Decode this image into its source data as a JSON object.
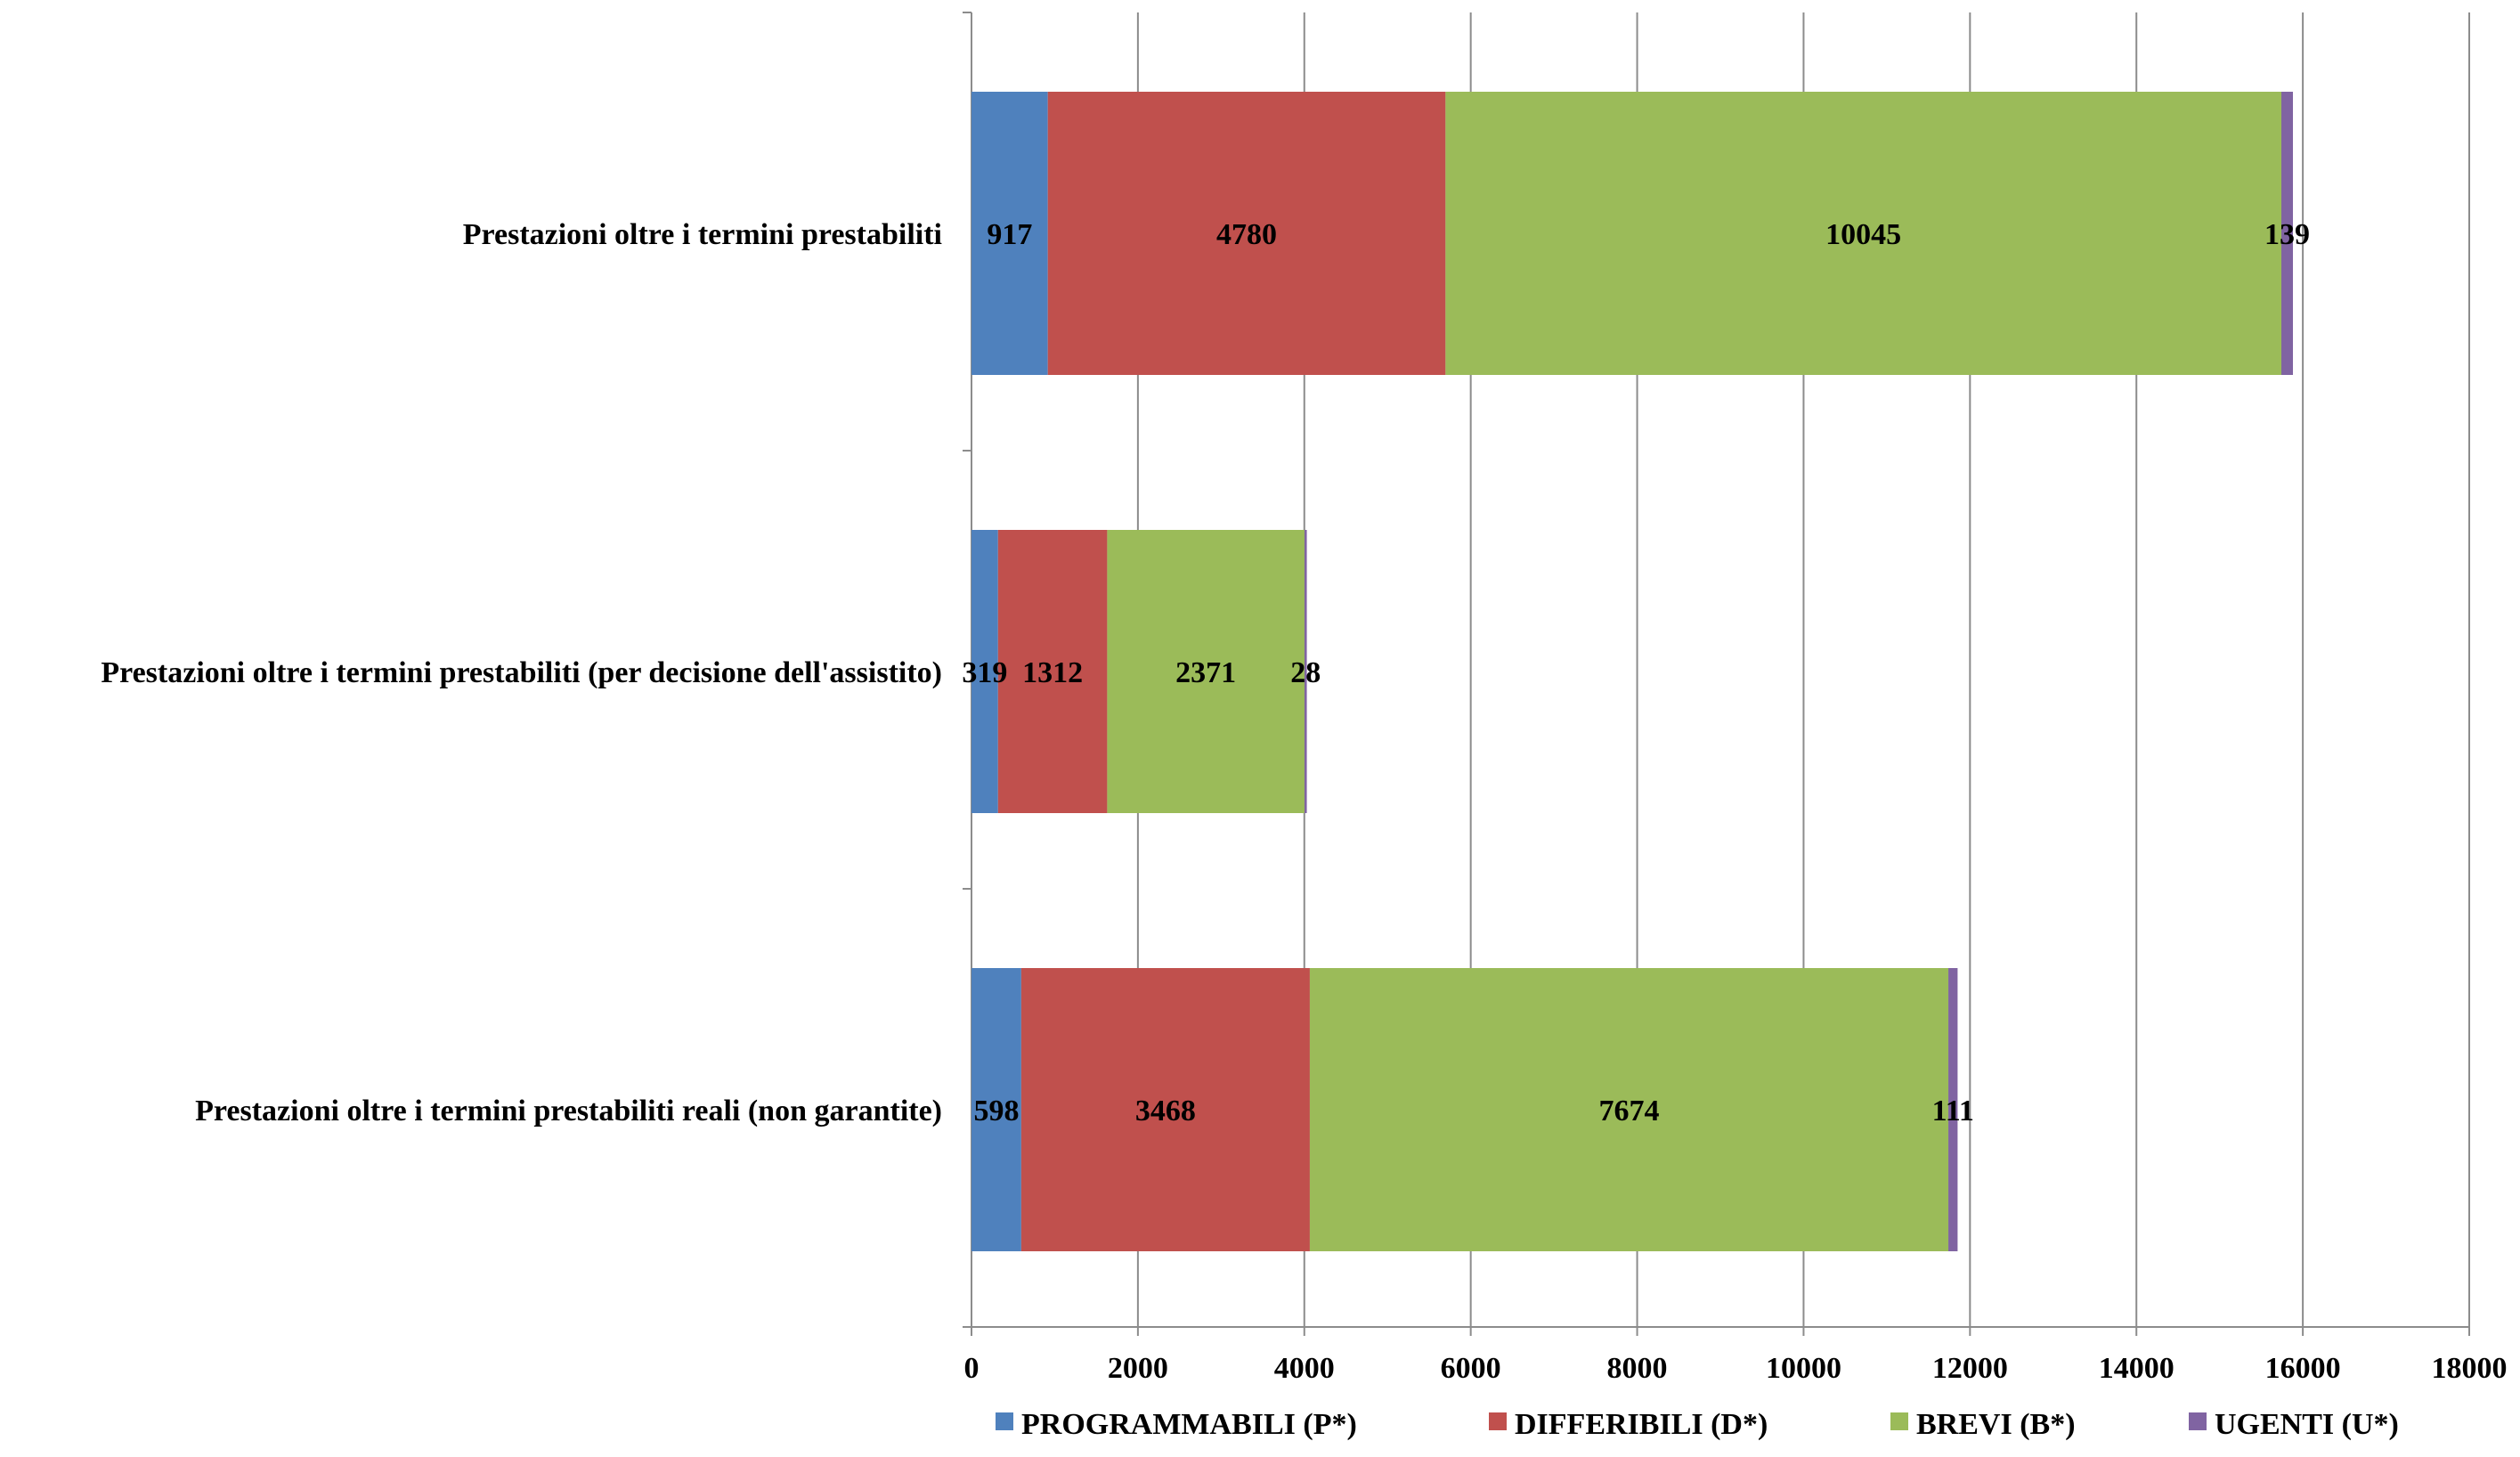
{
  "chart_data": {
    "type": "bar",
    "orientation": "horizontal",
    "stacked": true,
    "title": "",
    "xlabel": "",
    "ylabel": "",
    "xlim": [
      0,
      18000
    ],
    "x_ticks": [
      0,
      2000,
      4000,
      6000,
      8000,
      10000,
      12000,
      14000,
      16000,
      18000
    ],
    "grid": "vertical",
    "legend_position": "bottom",
    "categories": [
      "Prestazioni oltre i termini prestabiliti",
      "Prestazioni oltre i termini prestabiliti (per decisione dell'assistito)",
      "Prestazioni oltre i termini prestabiliti reali (non garantite)"
    ],
    "series": [
      {
        "name": "PROGRAMMABILI (P*)",
        "color": "#4F81BD",
        "values": [
          917,
          319,
          598
        ]
      },
      {
        "name": "DIFFERIBILI (D*)",
        "color": "#C0504D",
        "values": [
          4780,
          1312,
          3468
        ]
      },
      {
        "name": "BREVI (B*)",
        "color": "#9BBB59",
        "values": [
          10045,
          2371,
          7674
        ]
      },
      {
        "name": "UGENTI (U*)",
        "color": "#8064A2",
        "values": [
          139,
          28,
          111
        ]
      }
    ]
  }
}
